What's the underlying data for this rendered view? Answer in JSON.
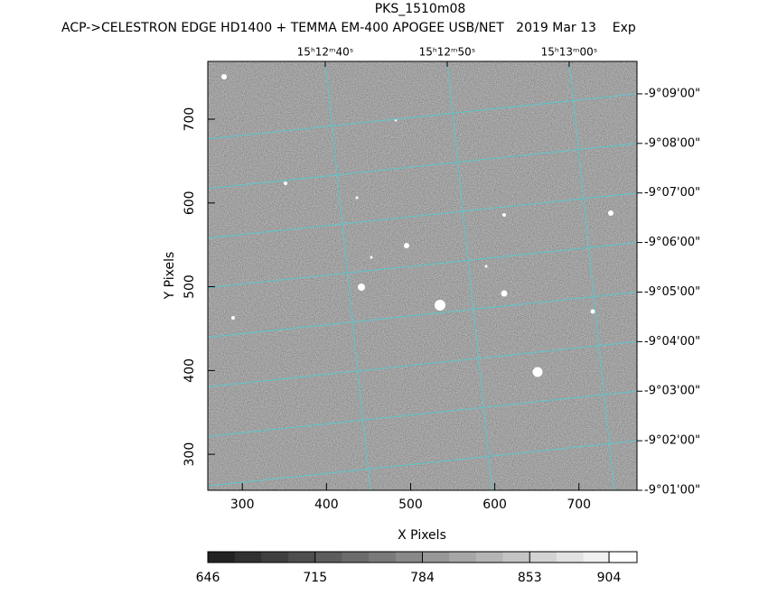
{
  "chart_data": {
    "type": "image",
    "title": "PKS_1510m08",
    "subtitle": "ACP->CELESTRON EDGE HD1400 + TEMMA EM-400 APOGEE USB/NET   2019 Mar 13    Exp",
    "xlabel": "X Pixels",
    "ylabel": "Y Pixels",
    "xlim": [
      259,
      769
    ],
    "xticks": [
      300,
      400,
      500,
      600,
      700
    ],
    "ylim": [
      257,
      769
    ],
    "yticks": [
      300,
      400,
      500,
      600,
      700
    ],
    "x2lim": [
      30.37,
      65.56
    ],
    "x2ticks": [
      {
        "value": 40,
        "label": "15ʰ12ᵐ40ˢ"
      },
      {
        "value": 50,
        "label": "15ʰ12ᵐ50ˢ"
      },
      {
        "value": 60,
        "label": "15ʰ13ᵐ00ˢ"
      }
    ],
    "y2lim": [
      -9.016667,
      -9.160909
    ],
    "y2ticks": [
      {
        "value": -9.15,
        "label": "-9°09'00\""
      },
      {
        "value": -9.133333,
        "label": "-9°08'00\""
      },
      {
        "value": -9.116667,
        "label": "-9°07'00\""
      },
      {
        "value": -9.1,
        "label": "-9°06'00\""
      },
      {
        "value": -9.083333,
        "label": "-9°05'00\""
      },
      {
        "value": -9.066667,
        "label": "-9°04'00\""
      },
      {
        "value": -9.05,
        "label": "-9°03'00\""
      },
      {
        "value": -9.033333,
        "label": "-9°02'00\""
      },
      {
        "value": -9.016667,
        "label": "-9°01'00\""
      }
    ],
    "grid": true,
    "grid_color": "#5cc6cc",
    "colorbar": {
      "lim": [
        646,
        922
      ],
      "ticks": [
        646,
        715,
        784,
        853,
        904
      ]
    }
  }
}
